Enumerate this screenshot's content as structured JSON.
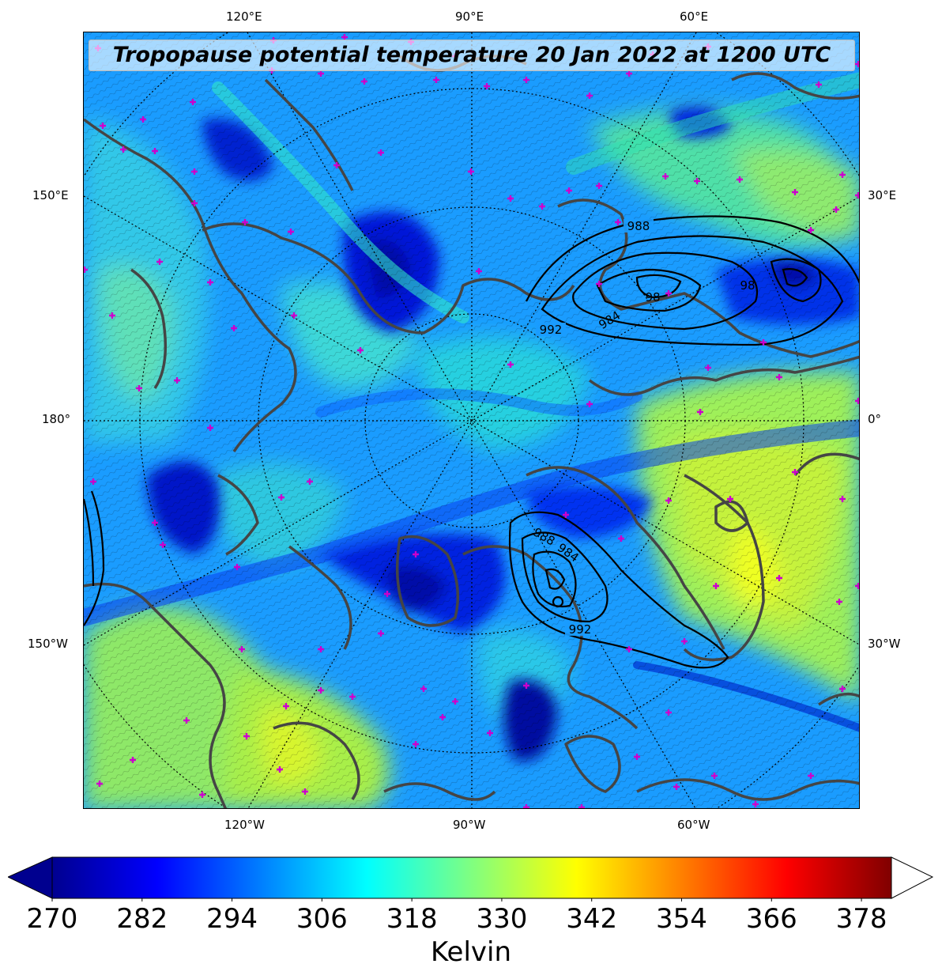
{
  "title": "Tropopause potential temperature 20 Jan 2022 at 1200 UTC",
  "lon_labels": {
    "top": [
      "120°E",
      "90°E",
      "60°E"
    ],
    "bottom": [
      "120°W",
      "90°W",
      "60°W"
    ],
    "left": [
      "150°E",
      "180°",
      "150°W"
    ],
    "right": [
      "30°E",
      "0°",
      "30°W"
    ]
  },
  "colorbar": {
    "min": 270,
    "max": 382,
    "ticks": [
      "270",
      "282",
      "294",
      "306",
      "318",
      "330",
      "342",
      "354",
      "366",
      "378"
    ],
    "label": "Kelvin",
    "colormap": [
      "#00008f",
      "#0000ff",
      "#0080ff",
      "#00ffff",
      "#80ff80",
      "#ffff00",
      "#ff8000",
      "#ff0000",
      "#800000"
    ]
  },
  "isobar_labels": [
    "988",
    "984",
    "992",
    "98",
    "98",
    "988",
    "984",
    "992"
  ],
  "overlay_colors": {
    "coastline": "#444444",
    "station_marker": "#cc00cc",
    "isobar": "#000000"
  }
}
